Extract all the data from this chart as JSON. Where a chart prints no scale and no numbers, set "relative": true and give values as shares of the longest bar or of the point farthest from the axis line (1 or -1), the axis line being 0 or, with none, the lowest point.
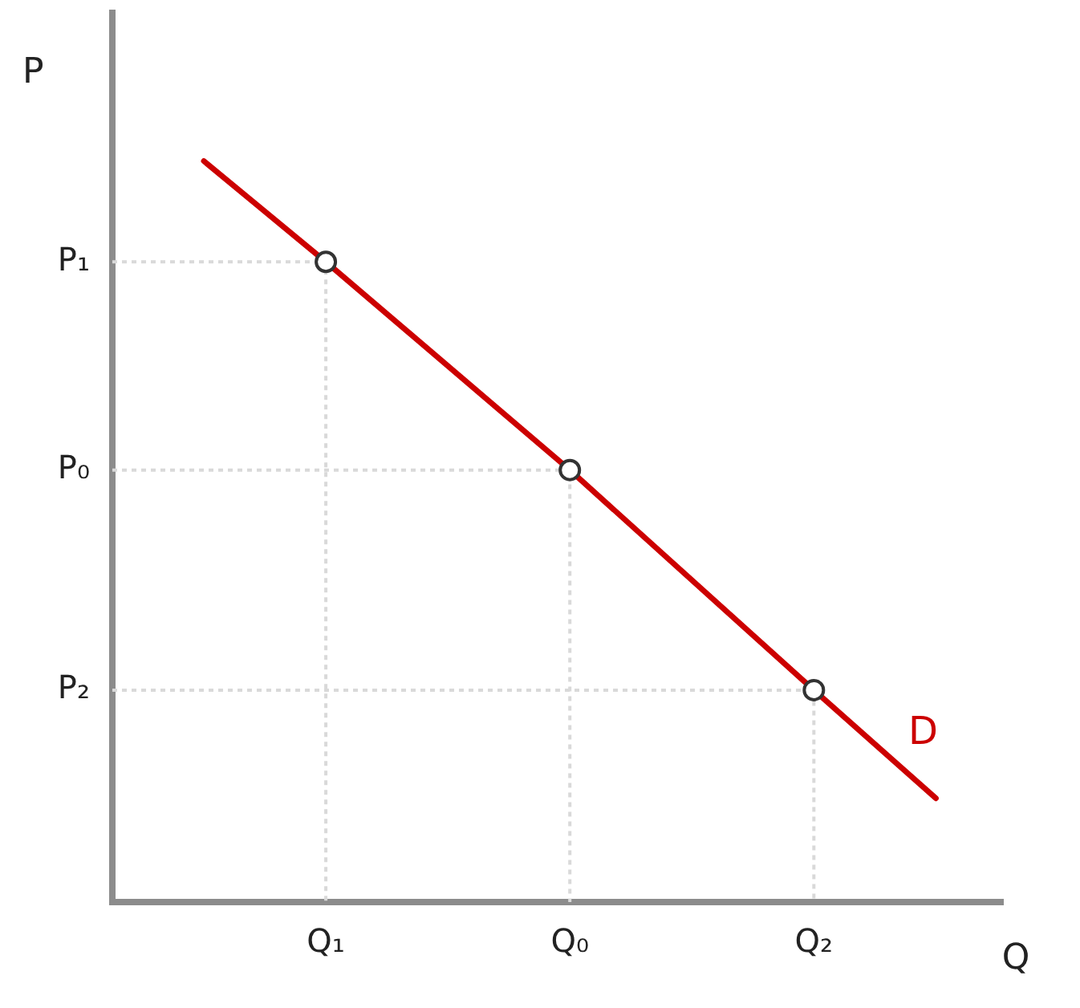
{
  "chart_data": {
    "type": "line",
    "relative": true,
    "xlabel": "Q",
    "ylabel": "P",
    "legend": false,
    "categories": [
      null,
      null,
      "Q₁",
      null,
      null,
      null,
      "Q₀",
      null,
      null,
      null,
      "Q₂",
      null,
      null
    ],
    "annotations": [
      "P₁",
      "P₀",
      "P₂"
    ],
    "series": [
      {
        "name": "D",
        "color": "#cc0000",
        "line_style": "solid",
        "marker": "none",
        "values": [
          1,
          null,
          0.864,
          null,
          null,
          null,
          0.583,
          null,
          null,
          null,
          0.286,
          null,
          0.14
        ]
      },
      {
        "type": "scatter",
        "color": "#333333",
        "marker": "circle",
        "values": [
          null,
          null,
          0.864,
          null,
          null,
          null,
          0.583,
          null,
          null,
          null,
          0.286,
          null,
          null
        ]
      }
    ]
  }
}
